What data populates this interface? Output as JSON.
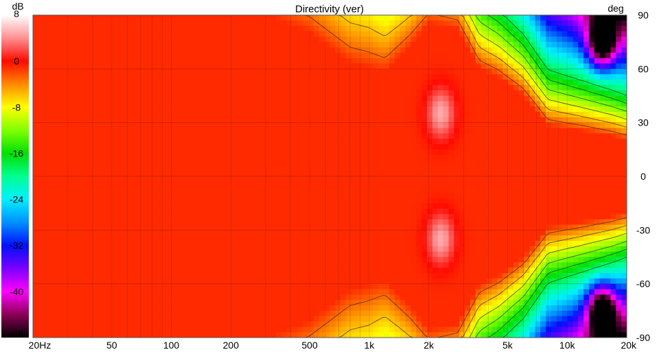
{
  "chart_data": {
    "type": "heatmap",
    "title": "Directivity (ver)",
    "colorbar_unit": "dB",
    "yaxis_unit": "deg",
    "x_scale": "log",
    "xlim": [
      20,
      20000
    ],
    "ylim": [
      -90,
      90
    ],
    "color_range": [
      -48,
      8
    ],
    "x_ticks": [
      {
        "value": 20,
        "label": "20Hz"
      },
      {
        "value": 50,
        "label": "50"
      },
      {
        "value": 100,
        "label": "100"
      },
      {
        "value": 200,
        "label": "200"
      },
      {
        "value": 500,
        "label": "500"
      },
      {
        "value": 1000,
        "label": "1k"
      },
      {
        "value": 2000,
        "label": "2k"
      },
      {
        "value": 5000,
        "label": "5k"
      },
      {
        "value": 10000,
        "label": "10k"
      },
      {
        "value": 20000,
        "label": "20k"
      }
    ],
    "y_ticks": [
      {
        "value": 90,
        "label": "90"
      },
      {
        "value": 60,
        "label": "60"
      },
      {
        "value": 30,
        "label": "30"
      },
      {
        "value": 0,
        "label": "0"
      },
      {
        "value": -30,
        "label": "-30"
      },
      {
        "value": -60,
        "label": "-60"
      },
      {
        "value": -90,
        "label": "-90"
      }
    ],
    "colorbar_ticks": [
      {
        "value": 8,
        "label": "8"
      },
      {
        "value": 0,
        "label": "0"
      },
      {
        "value": -8,
        "label": "-8"
      },
      {
        "value": -16,
        "label": "-16"
      },
      {
        "value": -24,
        "label": "-24"
      },
      {
        "value": -32,
        "label": "-32"
      },
      {
        "value": -40,
        "label": "-40"
      },
      {
        "value": -48,
        "label": "-48"
      }
    ],
    "colormap": [
      {
        "value": 8,
        "color": "#ffffff"
      },
      {
        "value": 4,
        "color": "#ff9090"
      },
      {
        "value": 0,
        "color": "#ff0a00"
      },
      {
        "value": -4,
        "color": "#ff8a00"
      },
      {
        "value": -8,
        "color": "#ffff00"
      },
      {
        "value": -12,
        "color": "#80ff00"
      },
      {
        "value": -16,
        "color": "#00e000"
      },
      {
        "value": -20,
        "color": "#00ff90"
      },
      {
        "value": -24,
        "color": "#00f0ff"
      },
      {
        "value": -28,
        "color": "#0090ff"
      },
      {
        "value": -32,
        "color": "#0010ff"
      },
      {
        "value": -36,
        "color": "#7a00ff"
      },
      {
        "value": -40,
        "color": "#ff00ff"
      },
      {
        "value": -44,
        "color": "#8a0055"
      },
      {
        "value": -48,
        "color": "#000000"
      }
    ],
    "contour_levels": [
      -3,
      -6,
      -9,
      -12,
      -15,
      -18
    ],
    "features": [
      {
        "freq": 2300,
        "angle": 35,
        "level": 5,
        "desc": "hot spot"
      },
      {
        "freq": 2300,
        "angle": -35,
        "level": 5,
        "desc": "hot spot"
      },
      {
        "freq": 15000,
        "angle": 75,
        "level": -33,
        "desc": "deep null"
      },
      {
        "freq": 15000,
        "angle": -75,
        "level": -33,
        "desc": "deep null"
      }
    ],
    "beamwidth_contour": [
      {
        "freq": 20,
        "angle": 90
      },
      {
        "freq": 300,
        "angle": 90
      },
      {
        "freq": 500,
        "angle": 80
      },
      {
        "freq": 800,
        "angle": 63
      },
      {
        "freq": 1200,
        "angle": 58
      },
      {
        "freq": 1600,
        "angle": 72
      },
      {
        "freq": 2000,
        "angle": 85
      },
      {
        "freq": 2800,
        "angle": 82
      },
      {
        "freq": 3600,
        "angle": 60
      },
      {
        "freq": 4500,
        "angle": 55
      },
      {
        "freq": 6000,
        "angle": 45
      },
      {
        "freq": 8000,
        "angle": 28
      },
      {
        "freq": 12000,
        "angle": 25
      },
      {
        "freq": 17000,
        "angle": 22
      },
      {
        "freq": 20000,
        "angle": 20
      }
    ]
  }
}
